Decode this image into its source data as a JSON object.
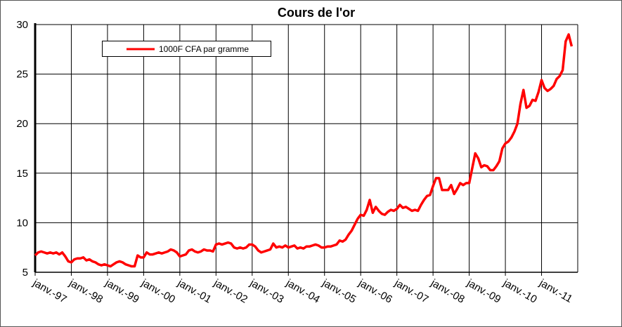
{
  "chart_data": {
    "type": "line",
    "title": "Cours de l'or",
    "categories": [
      "janv.-97",
      null,
      null,
      null,
      null,
      null,
      null,
      null,
      null,
      null,
      null,
      null,
      "janv.-98",
      null,
      null,
      null,
      null,
      null,
      null,
      null,
      null,
      null,
      null,
      null,
      "janv.-99",
      null,
      null,
      null,
      null,
      null,
      null,
      null,
      null,
      null,
      null,
      null,
      "janv.-00",
      null,
      null,
      null,
      null,
      null,
      null,
      null,
      null,
      null,
      null,
      null,
      "janv.-01",
      null,
      null,
      null,
      null,
      null,
      null,
      null,
      null,
      null,
      null,
      null,
      "janv.-02",
      null,
      null,
      null,
      null,
      null,
      null,
      null,
      null,
      null,
      null,
      null,
      "janv.-03",
      null,
      null,
      null,
      null,
      null,
      null,
      null,
      null,
      null,
      null,
      null,
      "janv.-04",
      null,
      null,
      null,
      null,
      null,
      null,
      null,
      null,
      null,
      null,
      null,
      "janv.-05",
      null,
      null,
      null,
      null,
      null,
      null,
      null,
      null,
      null,
      null,
      null,
      "janv.-06",
      null,
      null,
      null,
      null,
      null,
      null,
      null,
      null,
      null,
      null,
      null,
      "janv.-07",
      null,
      null,
      null,
      null,
      null,
      null,
      null,
      null,
      null,
      null,
      null,
      "janv.-08",
      null,
      null,
      null,
      null,
      null,
      null,
      null,
      null,
      null,
      null,
      null,
      "janv.-09",
      null,
      null,
      null,
      null,
      null,
      null,
      null,
      null,
      null,
      null,
      null,
      "janv.-10",
      null,
      null,
      null,
      null,
      null,
      null,
      null,
      null,
      null,
      null,
      null,
      "janv.-11",
      null,
      null,
      null,
      null,
      null,
      null,
      null,
      null,
      null,
      null
    ],
    "series": [
      {
        "name": "1000F CFA par gramme",
        "color": "#ff0000",
        "values": [
          6.7,
          7.0,
          7.1,
          7.0,
          6.9,
          7.0,
          6.9,
          7.0,
          6.8,
          7.0,
          6.6,
          6.1,
          6.0,
          6.3,
          6.4,
          6.4,
          6.5,
          6.2,
          6.3,
          6.1,
          6.0,
          5.8,
          5.7,
          5.8,
          5.7,
          5.6,
          5.8,
          6.0,
          6.1,
          6.0,
          5.8,
          5.7,
          5.6,
          5.6,
          6.7,
          6.5,
          6.5,
          7.0,
          6.8,
          6.8,
          6.9,
          7.0,
          6.9,
          7.0,
          7.1,
          7.3,
          7.2,
          7.0,
          6.6,
          6.7,
          6.8,
          7.2,
          7.3,
          7.1,
          7.0,
          7.1,
          7.3,
          7.2,
          7.2,
          7.1,
          7.8,
          7.9,
          7.8,
          7.9,
          8.0,
          7.9,
          7.5,
          7.4,
          7.5,
          7.4,
          7.5,
          7.8,
          7.8,
          7.6,
          7.2,
          7.0,
          7.1,
          7.2,
          7.3,
          7.9,
          7.5,
          7.6,
          7.5,
          7.7,
          7.5,
          7.6,
          7.7,
          7.4,
          7.5,
          7.4,
          7.6,
          7.6,
          7.7,
          7.8,
          7.7,
          7.5,
          7.5,
          7.6,
          7.6,
          7.7,
          7.8,
          8.2,
          8.1,
          8.3,
          8.8,
          9.2,
          9.8,
          10.4,
          10.8,
          10.7,
          11.3,
          12.3,
          11.0,
          11.6,
          11.2,
          10.9,
          10.8,
          11.1,
          11.3,
          11.2,
          11.4,
          11.8,
          11.5,
          11.6,
          11.4,
          11.2,
          11.3,
          11.2,
          11.8,
          12.3,
          12.7,
          12.8,
          13.7,
          14.5,
          14.5,
          13.3,
          13.3,
          13.3,
          13.8,
          12.9,
          13.4,
          14.0,
          13.8,
          14.0,
          14.0,
          15.5,
          17.0,
          16.5,
          15.6,
          15.8,
          15.7,
          15.3,
          15.3,
          15.7,
          16.2,
          17.5,
          18.0,
          18.2,
          18.6,
          19.2,
          20.0,
          22.0,
          23.4,
          21.6,
          21.8,
          22.4,
          22.3,
          23.2,
          24.4,
          23.6,
          23.3,
          23.5,
          23.8,
          24.5,
          24.8,
          25.4,
          28.3,
          29.0,
          27.8
        ]
      }
    ],
    "ylim": [
      5,
      30
    ],
    "yticks": [
      5,
      10,
      15,
      20,
      25,
      30
    ],
    "grid": true
  }
}
